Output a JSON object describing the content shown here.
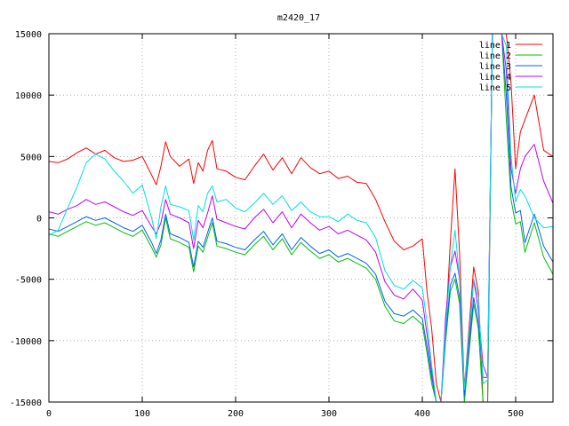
{
  "chart_data": {
    "type": "line",
    "title": "m2420_17",
    "xlim": [
      0,
      540
    ],
    "ylim": [
      -15000,
      15000
    ],
    "x_ticks": [
      0,
      100,
      200,
      300,
      400,
      500
    ],
    "y_ticks": [
      -15000,
      -10000,
      -5000,
      0,
      5000,
      10000,
      15000
    ],
    "x_tick_labels": [
      "0",
      "100",
      "200",
      "300",
      "400",
      "500"
    ],
    "y_tick_labels": [
      "-15000",
      "-10000",
      "-5000",
      "0",
      "5000",
      "10000",
      "15000"
    ],
    "grid": true,
    "legend_position": "top-right",
    "x": [
      0,
      10,
      20,
      30,
      40,
      50,
      60,
      70,
      80,
      90,
      100,
      110,
      115,
      120,
      125,
      130,
      140,
      150,
      155,
      160,
      165,
      170,
      175,
      180,
      190,
      200,
      210,
      220,
      230,
      240,
      250,
      260,
      270,
      280,
      290,
      300,
      310,
      320,
      330,
      340,
      350,
      360,
      370,
      380,
      390,
      400,
      405,
      410,
      415,
      420,
      425,
      430,
      435,
      440,
      445,
      450,
      455,
      460,
      465,
      470,
      475,
      480,
      485,
      490,
      495,
      500,
      505,
      510,
      520,
      530,
      540
    ],
    "series": [
      {
        "name": "line 1",
        "color": "#ff0000",
        "values": [
          4600,
          4500,
          4800,
          5300,
          5700,
          5200,
          5500,
          4900,
          4600,
          4700,
          5000,
          3500,
          2700,
          4200,
          6200,
          5000,
          4200,
          4800,
          2800,
          4500,
          3800,
          5500,
          6300,
          4000,
          3800,
          3300,
          3100,
          4200,
          5200,
          3900,
          4900,
          3600,
          4900,
          4100,
          3600,
          3800,
          3200,
          3400,
          2900,
          2800,
          1500,
          -300,
          -1900,
          -2600,
          -2300,
          -1700,
          -6000,
          -9000,
          -13500,
          -15000,
          -9000,
          -2000,
          4000,
          -3000,
          -14000,
          -9000,
          -4000,
          -6000,
          -15000,
          -15000,
          15000,
          15000,
          15000,
          15000,
          11000,
          4000,
          7000,
          8000,
          10000,
          5500,
          5000
        ]
      },
      {
        "name": "line 2",
        "color": "#00c000",
        "values": [
          -1300,
          -1500,
          -1100,
          -700,
          -300,
          -600,
          -400,
          -800,
          -1200,
          -1500,
          -1000,
          -2400,
          -3200,
          -2200,
          0,
          -1700,
          -2000,
          -2400,
          -4400,
          -2300,
          -2800,
          -1600,
          -400,
          -2300,
          -2500,
          -2800,
          -3000,
          -2200,
          -1500,
          -2600,
          -1700,
          -3000,
          -2000,
          -2700,
          -3300,
          -3000,
          -3600,
          -3300,
          -3700,
          -4100,
          -5000,
          -7200,
          -8400,
          -8600,
          -8000,
          -8700,
          -11000,
          -13500,
          -15000,
          -15000,
          -10000,
          -6000,
          -5000,
          -7000,
          -15000,
          -11000,
          -7000,
          -9000,
          -15000,
          -15000,
          15000,
          15000,
          15000,
          8000,
          1500,
          -500,
          -300,
          -2800,
          -400,
          -3200,
          -4600
        ]
      },
      {
        "name": "line 3",
        "color": "#0060ff",
        "values": [
          -900,
          -1100,
          -700,
          -300,
          100,
          -200,
          0,
          -400,
          -800,
          -1100,
          -600,
          -2000,
          -2900,
          -1800,
          300,
          -1300,
          -1600,
          -2000,
          -4000,
          -1900,
          -2400,
          -1200,
          0,
          -1900,
          -2100,
          -2400,
          -2600,
          -1800,
          -1100,
          -2200,
          -1300,
          -2600,
          -1600,
          -2300,
          -2900,
          -2600,
          -3200,
          -2900,
          -3300,
          -3700,
          -4600,
          -6800,
          -7800,
          -8000,
          -7500,
          -8200,
          -10500,
          -13000,
          -15000,
          -15000,
          -9500,
          -5500,
          -4500,
          -6500,
          -14500,
          -10500,
          -6500,
          -8500,
          -13000,
          -13000,
          15000,
          15000,
          15000,
          10000,
          2500,
          400,
          600,
          -2000,
          300,
          -2300,
          -3600
        ]
      },
      {
        "name": "line 4",
        "color": "#c000ff",
        "values": [
          500,
          300,
          700,
          1000,
          1500,
          1100,
          1300,
          900,
          500,
          200,
          600,
          -700,
          -1300,
          -400,
          1500,
          300,
          0,
          -400,
          -2500,
          -200,
          -800,
          400,
          1800,
          -100,
          -400,
          -700,
          -900,
          0,
          700,
          -400,
          500,
          -800,
          300,
          -400,
          -1000,
          -700,
          -1300,
          -1000,
          -1400,
          -1800,
          -2800,
          -5200,
          -6300,
          -6600,
          -5800,
          -6700,
          -9500,
          -12500,
          -15000,
          -15000,
          -8000,
          -4000,
          -2700,
          -5000,
          -14000,
          -10000,
          -5000,
          -7500,
          -12000,
          -13000,
          15000,
          15000,
          15000,
          12000,
          4000,
          2000,
          4000,
          5000,
          6000,
          3000,
          1200
        ]
      },
      {
        "name": "line 5",
        "color": "#00e0e0",
        "values": [
          -1400,
          -1000,
          800,
          2500,
          4500,
          5200,
          4800,
          3800,
          3000,
          2000,
          2700,
          0,
          -1700,
          900,
          2600,
          1100,
          900,
          600,
          -1800,
          1000,
          500,
          2000,
          2600,
          1300,
          1500,
          800,
          500,
          1200,
          2000,
          1100,
          1800,
          600,
          1300,
          500,
          100,
          100,
          -300,
          300,
          -200,
          -400,
          -1600,
          -4300,
          -5500,
          -5800,
          -5100,
          -5700,
          -8500,
          -12000,
          -15000,
          -15000,
          -9000,
          -4000,
          -1000,
          -5000,
          -14000,
          -9500,
          -5000,
          -6500,
          -13500,
          -13200,
          15000,
          15000,
          15000,
          14000,
          5000,
          1300,
          2300,
          1800,
          0,
          -800,
          -700
        ]
      }
    ]
  }
}
